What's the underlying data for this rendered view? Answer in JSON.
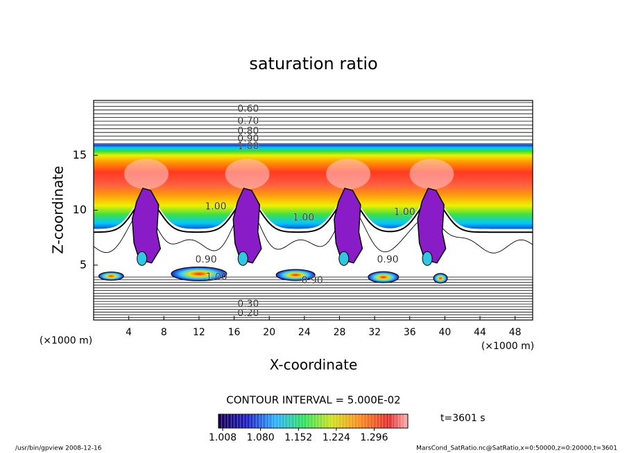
{
  "chart_data": {
    "type": "contour",
    "title": "saturation ratio",
    "x_label": "X-coordinate",
    "y_label": "Z-coordinate",
    "x_unit": "(×1000 m)",
    "y_unit": "(×1000 m)",
    "xlim": [
      0,
      50
    ],
    "ylim": [
      0,
      20
    ],
    "xticks": [
      4,
      8,
      12,
      16,
      20,
      24,
      28,
      32,
      36,
      40,
      44,
      48
    ],
    "yticks": [
      5,
      10,
      15
    ],
    "contour_labels": [
      {
        "label": "0.60",
        "x": 17.6,
        "z": 19.2
      },
      {
        "label": "0.70",
        "x": 17.6,
        "z": 18.1
      },
      {
        "label": "0.80",
        "x": 17.6,
        "z": 17.2
      },
      {
        "label": "0.90",
        "x": 17.6,
        "z": 16.5
      },
      {
        "label": "1.00",
        "x": 17.6,
        "z": 15.8
      },
      {
        "label": "1.00",
        "x": 13.9,
        "z": 10.3
      },
      {
        "label": "1.00",
        "x": 23.9,
        "z": 9.3
      },
      {
        "label": "1.00",
        "x": 35.4,
        "z": 9.8
      },
      {
        "label": "0.90",
        "x": 12.8,
        "z": 5.5
      },
      {
        "label": "1.00",
        "x": 14.0,
        "z": 3.9
      },
      {
        "label": "0.90",
        "x": 24.9,
        "z": 3.6
      },
      {
        "label": "0.90",
        "x": 33.5,
        "z": 5.5
      },
      {
        "label": "0.30",
        "x": 17.6,
        "z": 1.45
      },
      {
        "label": "0.20",
        "x": 17.6,
        "z": 0.6
      }
    ],
    "contour_interval": "CONTOUR INTERVAL = 5.000E-02",
    "colorbar": {
      "lim": [
        1.0,
        1.36
      ],
      "ticks": [
        1.008,
        {
          "value": 1.08,
          "label": "1.080"
        },
        1.152,
        1.224,
        1.296
      ]
    },
    "time": "t=3601 s"
  },
  "footer": {
    "left": "/usr/bin/gpview   2008-12-16",
    "right": "MarsCond_SatRatio.nc@SatRatio,x=0:50000,z=0:20000,t=3601"
  }
}
